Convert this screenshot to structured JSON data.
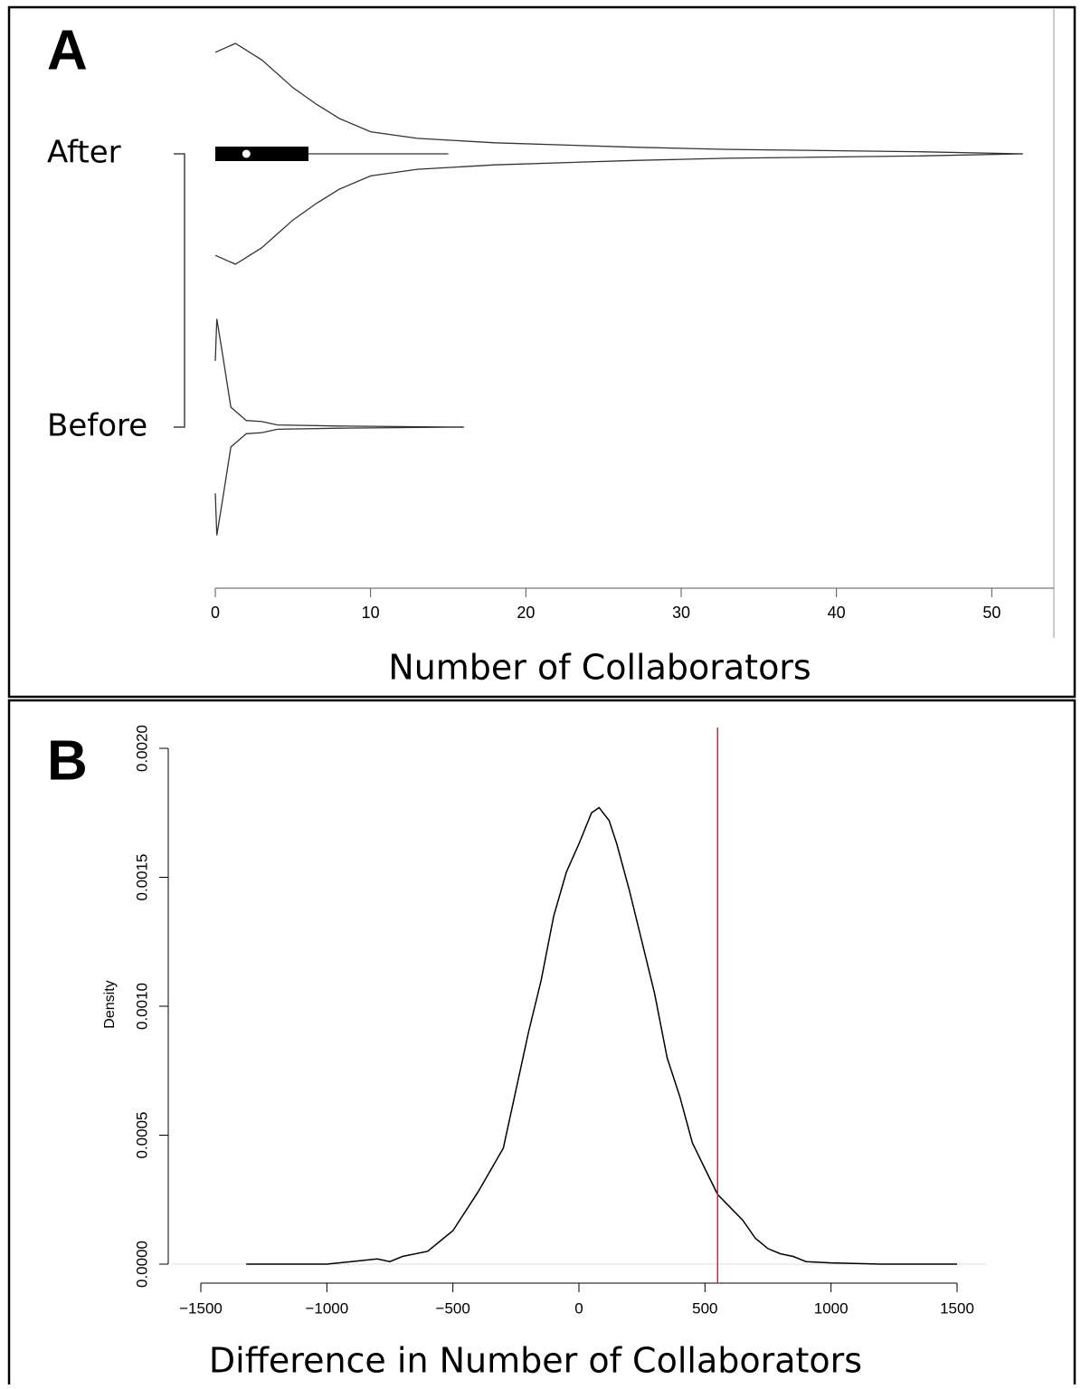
{
  "chart_data": [
    {
      "type": "violin",
      "panel_label": "A",
      "categories": [
        "After",
        "Before"
      ],
      "xlabel": "Number of Collaborators",
      "xlim": [
        0,
        54
      ],
      "xticks": [
        0,
        10,
        20,
        30,
        40,
        50
      ],
      "violins": [
        {
          "x": [
            0,
            1.3,
            3,
            5,
            6.5,
            8,
            10,
            13,
            18,
            27,
            33,
            45,
            52
          ],
          "density": [
            0.92,
            1,
            0.85,
            0.6,
            0.45,
            0.32,
            0.2,
            0.14,
            0.1,
            0.06,
            0.04,
            0.02,
            0
          ],
          "box": {
            "q1": 0,
            "median": 2,
            "q3": 6,
            "whisker_low": 0,
            "whisker_high": 15
          }
        },
        {
          "x": [
            0,
            0.1,
            0.5,
            1,
            2,
            3,
            4,
            8,
            16
          ],
          "density": [
            0.6,
            0.98,
            0.63,
            0.18,
            0.06,
            0.05,
            0.02,
            0.01,
            0
          ]
        }
      ]
    },
    {
      "type": "density",
      "panel_label": "B",
      "xlabel": "Difference in Number of Collaborators",
      "ylabel": "Density",
      "x": [
        -1320,
        -1000,
        -800,
        -750,
        -700,
        -600,
        -500,
        -400,
        -300,
        -200,
        -150,
        -100,
        -50,
        0,
        50,
        80,
        120,
        150,
        200,
        250,
        300,
        350,
        400,
        450,
        500,
        550,
        600,
        650,
        700,
        750,
        800,
        850,
        900,
        1000,
        1200,
        1500
      ],
      "values": [
        0,
        0,
        2e-05,
        1e-05,
        3e-05,
        5e-05,
        0.00013,
        0.00028,
        0.00045,
        0.0009,
        0.0011,
        0.00135,
        0.00152,
        0.00163,
        0.00175,
        0.00177,
        0.00172,
        0.00163,
        0.00145,
        0.00125,
        0.00105,
        0.0008,
        0.00065,
        0.00047,
        0.00037,
        0.00027,
        0.00022,
        0.00017,
        0.0001,
        6e-05,
        4e-05,
        3e-05,
        1e-05,
        5e-06,
        0,
        0
      ],
      "color": "#000000",
      "xlim": [
        -1500,
        1500
      ],
      "xticks": [
        {
          "value": -1500,
          "label": "−1500"
        },
        {
          "value": -1000,
          "label": "−1000"
        },
        {
          "value": -500,
          "label": "−500"
        },
        0,
        500,
        1000,
        1500
      ],
      "ylim": [
        0,
        0.002
      ],
      "yticks": [
        {
          "value": 0,
          "label": "0.0000"
        },
        {
          "value": 0.0005,
          "label": "0.0005"
        },
        {
          "value": 0.001,
          "label": "0.0010"
        },
        {
          "value": 0.0015,
          "label": "0.0015"
        },
        {
          "value": 0.002,
          "label": "0.0020"
        }
      ],
      "vline": 550,
      "vline_color": "#d62728"
    }
  ]
}
